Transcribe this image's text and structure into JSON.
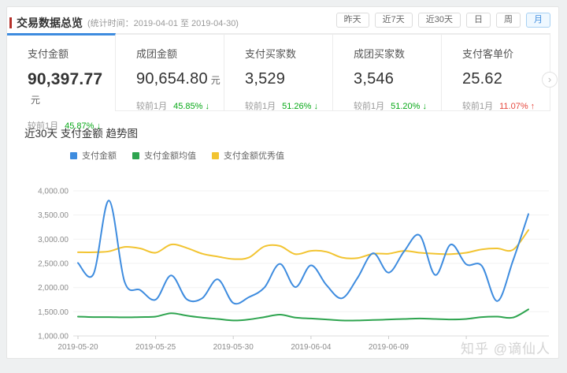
{
  "header": {
    "title": "交易数据总览",
    "subtitle": "(统计时间：2019-04-01 至 2019-04-30)",
    "range_buttons": [
      {
        "key": "yesterday",
        "label": "昨天",
        "active": false
      },
      {
        "key": "last-7-days",
        "label": "近7天",
        "active": false
      },
      {
        "key": "last-30-days",
        "label": "近30天",
        "active": false
      },
      {
        "key": "day",
        "label": "日",
        "active": false
      },
      {
        "key": "week",
        "label": "周",
        "active": false
      },
      {
        "key": "month",
        "label": "月",
        "active": true
      }
    ]
  },
  "stats": {
    "cards": [
      {
        "key": "payment-amount",
        "label": "支付金额",
        "value": "90,397.77",
        "unit": "元",
        "compare_label": "较前1月",
        "percent": "45.87%",
        "direction": "down",
        "active": true
      },
      {
        "key": "group-amount",
        "label": "成团金额",
        "value": "90,654.80",
        "unit": "元",
        "compare_label": "较前1月",
        "percent": "45.85%",
        "direction": "down",
        "active": false
      },
      {
        "key": "payment-buyers",
        "label": "支付买家数",
        "value": "3,529",
        "unit": "",
        "compare_label": "较前1月",
        "percent": "51.26%",
        "direction": "down",
        "active": false
      },
      {
        "key": "group-buyers",
        "label": "成团买家数",
        "value": "3,546",
        "unit": "",
        "compare_label": "较前1月",
        "percent": "51.20%",
        "direction": "down",
        "active": false
      },
      {
        "key": "payment-per-customer",
        "label": "支付客单价",
        "value": "25.62",
        "unit": "",
        "compare_label": "较前1月",
        "percent": "11.07%",
        "direction": "up",
        "active": false
      }
    ],
    "next_arrow_icon": "›"
  },
  "chart": {
    "title": "近30天 支付金额 趋势图"
  },
  "chart_data": {
    "type": "line",
    "title": "近30天 支付金额 趋势图",
    "x_count": 30,
    "x_tick_positions": [
      0,
      5,
      10,
      15,
      20,
      25
    ],
    "x_tick_labels": [
      "2019-05-20",
      "2019-05-25",
      "2019-05-30",
      "2019-06-04",
      "2019-06-09",
      ""
    ],
    "ylim": [
      1000,
      4000
    ],
    "y_ticks": [
      1000,
      1500,
      2000,
      2500,
      3000,
      3500,
      4000
    ],
    "grid": true,
    "legend_position": "top-left",
    "series": [
      {
        "name": "支付金额",
        "color": "#3e8cdf",
        "values": [
          2510,
          2280,
          3800,
          2120,
          1950,
          1750,
          2250,
          1760,
          1780,
          2170,
          1680,
          1800,
          2000,
          2490,
          2010,
          2460,
          2050,
          1780,
          2200,
          2710,
          2310,
          2750,
          3080,
          2260,
          2890,
          2480,
          2450,
          1720,
          2550,
          3520
        ]
      },
      {
        "name": "支付金额均值",
        "color": "#2ea44f",
        "values": [
          1400,
          1390,
          1390,
          1385,
          1390,
          1400,
          1470,
          1420,
          1380,
          1350,
          1320,
          1340,
          1390,
          1440,
          1380,
          1360,
          1340,
          1320,
          1320,
          1330,
          1340,
          1350,
          1360,
          1350,
          1340,
          1350,
          1390,
          1400,
          1380,
          1550
        ]
      },
      {
        "name": "支付金额优秀值",
        "color": "#f2c431",
        "values": [
          2730,
          2730,
          2750,
          2840,
          2810,
          2720,
          2890,
          2820,
          2700,
          2640,
          2590,
          2620,
          2850,
          2860,
          2690,
          2760,
          2740,
          2620,
          2610,
          2700,
          2700,
          2760,
          2720,
          2700,
          2690,
          2720,
          2790,
          2810,
          2780,
          3190
        ]
      }
    ]
  },
  "page": {
    "watermark": "知乎 @谪仙人"
  },
  "colors": {
    "accent_red": "#b5312a",
    "active_blue": "#3e8cdf",
    "down_green": "#09a919",
    "up_red": "#e6493f",
    "series_blue": "#3e8cdf",
    "series_green": "#2ea44f",
    "series_yellow": "#f2c431"
  }
}
